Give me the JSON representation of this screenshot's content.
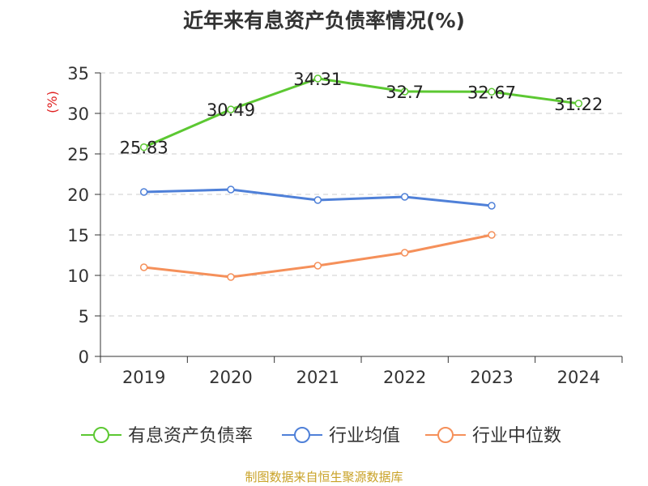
{
  "chart_data": {
    "type": "line",
    "title": "近年来有息资产负债率情况(%)",
    "ylabel": "(%)",
    "xlabel": "",
    "categories": [
      "2019",
      "2020",
      "2021",
      "2022",
      "2023",
      "2024"
    ],
    "ylim": [
      0,
      35
    ],
    "yticks": [
      0,
      5,
      10,
      15,
      20,
      25,
      30,
      35
    ],
    "grid": "horizontal-dashed",
    "legend_position": "bottom",
    "series": [
      {
        "name": "有息资产负债率",
        "color": "#5cc832",
        "values": [
          25.83,
          30.49,
          34.31,
          32.7,
          32.67,
          31.22
        ],
        "labels": [
          "25.83",
          "30.49",
          "34.31",
          "32.7",
          "32.67",
          "31.22"
        ]
      },
      {
        "name": "行业均值",
        "color": "#4f80d8",
        "values": [
          20.3,
          20.6,
          19.3,
          19.7,
          18.6,
          null
        ]
      },
      {
        "name": "行业中位数",
        "color": "#f5905a",
        "values": [
          11.0,
          9.8,
          11.2,
          12.8,
          15.0,
          null
        ]
      }
    ]
  },
  "source": "制图数据来自恒生聚源数据库"
}
